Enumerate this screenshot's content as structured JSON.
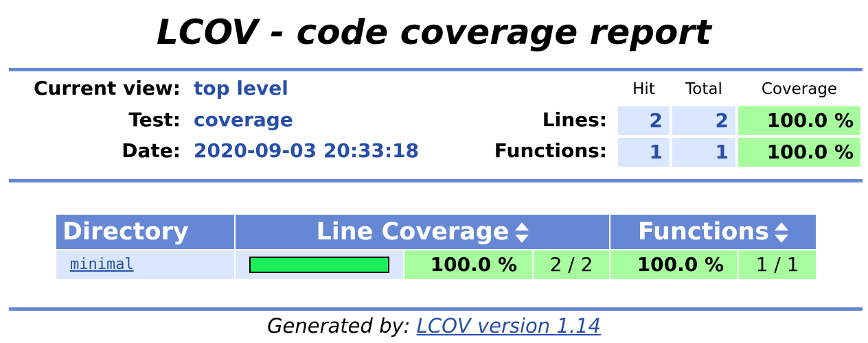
{
  "title": "LCOV - code coverage report",
  "info": {
    "current_view_label": "Current view:",
    "current_view": "top level",
    "test_label": "Test:",
    "test": "coverage",
    "date_label": "Date:",
    "date": "2020-09-03 20:33:18"
  },
  "summary": {
    "headers": [
      "Hit",
      "Total",
      "Coverage"
    ],
    "rows": [
      {
        "label": "Lines:",
        "hit": "2",
        "total": "2",
        "coverage": "100.0 %"
      },
      {
        "label": "Functions:",
        "hit": "1",
        "total": "1",
        "coverage": "100.0 %"
      }
    ]
  },
  "table": {
    "headers": {
      "directory": "Directory",
      "line_coverage": "Line Coverage",
      "functions": "Functions"
    },
    "rows": [
      {
        "name": "minimal",
        "line_percent": 100.0,
        "line_pct": "100.0 %",
        "line_ratio": "2 / 2",
        "func_pct": "100.0 %",
        "func_ratio": "1 / 1"
      }
    ]
  },
  "footer": {
    "prefix": "Generated by:",
    "link": "LCOV version 1.14"
  },
  "colors": {
    "accent": "#6688d4",
    "hit_bg": "#a7fc9d",
    "cell_bg": "#dae7fe",
    "bar": "#1bee58"
  }
}
